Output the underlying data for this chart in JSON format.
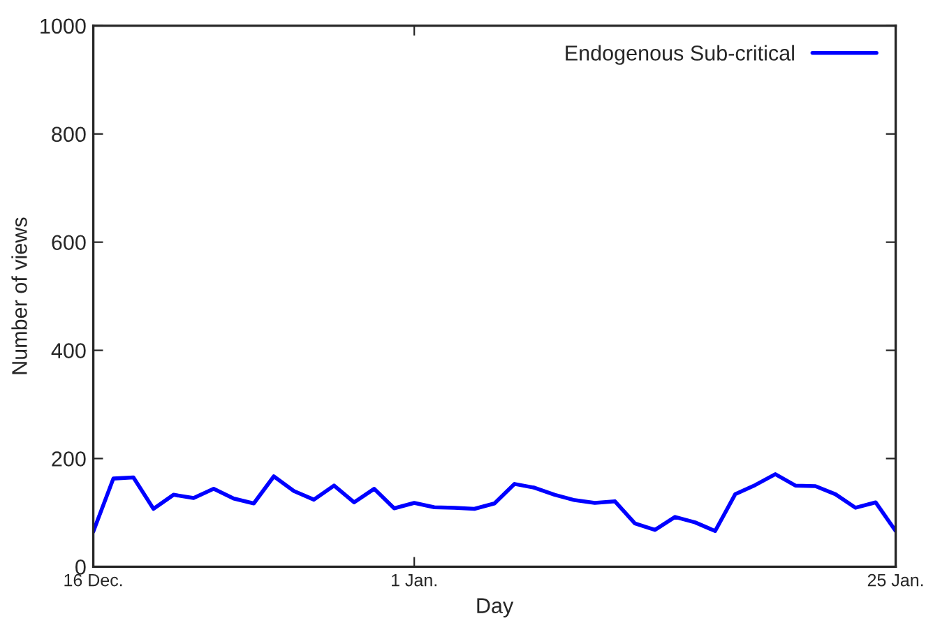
{
  "chart_data": {
    "type": "line",
    "xlabel": "Day",
    "ylabel": "Number of views",
    "categories": [
      "16 Dec.",
      null,
      null,
      null,
      null,
      null,
      null,
      null,
      null,
      null,
      null,
      null,
      null,
      null,
      null,
      null,
      "1 Jan.",
      null,
      null,
      null,
      null,
      null,
      null,
      null,
      null,
      null,
      null,
      null,
      null,
      null,
      null,
      null,
      null,
      null,
      null,
      null,
      null,
      null,
      null,
      null,
      "25 Jan."
    ],
    "series": [
      {
        "name": "Endogenous Sub-critical",
        "color": "#0000ff",
        "values": [
          65,
          163,
          165,
          107,
          133,
          127,
          144,
          126,
          117,
          167,
          140,
          124,
          150,
          119,
          144,
          108,
          118,
          110,
          109,
          107,
          117,
          153,
          146,
          133,
          123,
          118,
          121,
          80,
          68,
          92,
          82,
          66,
          134,
          151,
          171,
          150,
          149,
          134,
          109,
          119,
          66
        ]
      }
    ],
    "ylim": [
      0,
      1000
    ],
    "yticks": [
      0,
      200,
      400,
      600,
      800,
      1000
    ],
    "grid": false,
    "legend": "top right",
    "marker": "none",
    "line_style": "solid"
  }
}
